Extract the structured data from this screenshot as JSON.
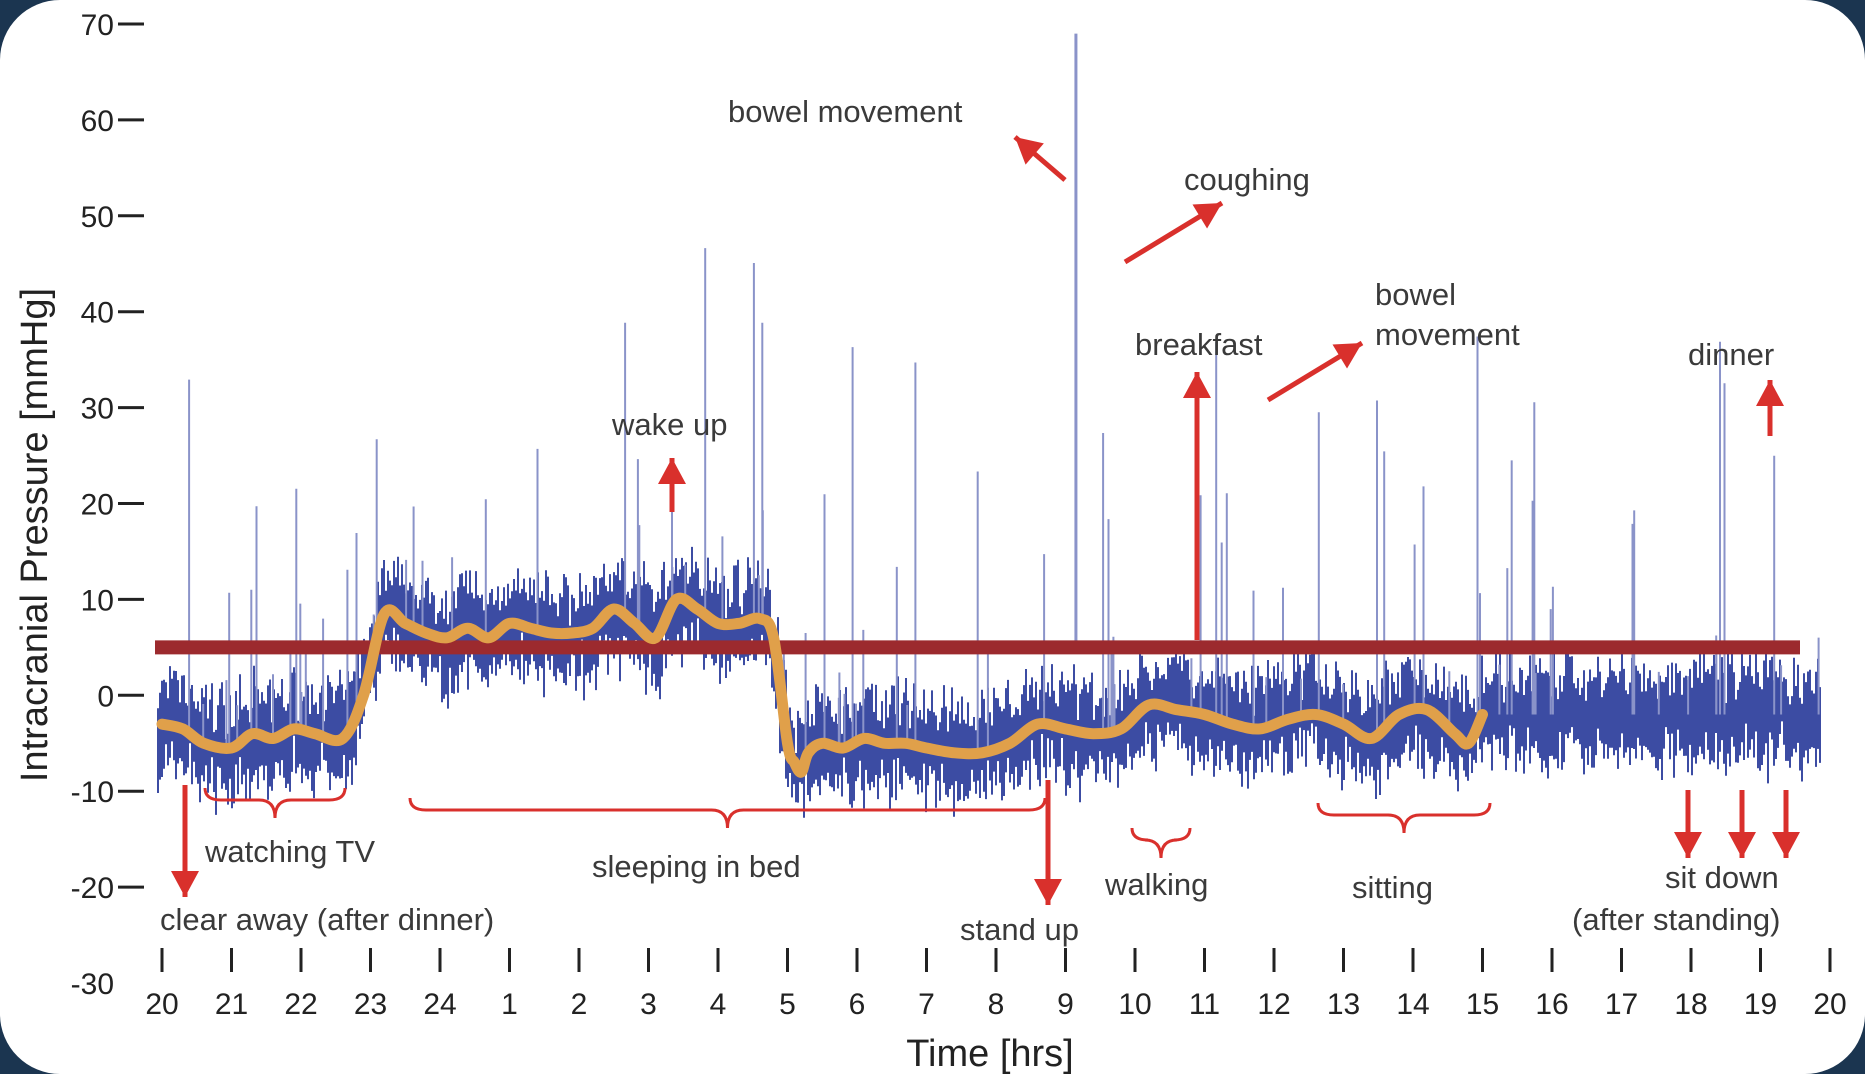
{
  "chart_data": {
    "type": "line",
    "xlabel": "Time [hrs]",
    "ylabel": "Intracranial Pressure [mmHg]",
    "ylim": [
      -30,
      70
    ],
    "yticks": [
      70,
      60,
      50,
      40,
      30,
      20,
      10,
      0,
      -10,
      -20,
      -30
    ],
    "xticks": [
      "20",
      "21",
      "22",
      "23",
      "24",
      "1",
      "2",
      "3",
      "4",
      "5",
      "6",
      "7",
      "8",
      "9",
      "10",
      "11",
      "12",
      "13",
      "14",
      "15",
      "16",
      "17",
      "18",
      "19",
      "20"
    ],
    "grid": false,
    "reference_line": {
      "y": 5,
      "color": "#9c2a2e"
    },
    "series": [
      {
        "color": "#e0a04a",
        "x": [
          0,
          0.3,
          0.6,
          1,
          1.3,
          1.6,
          1.9,
          2.2,
          2.6,
          2.9,
          3.2,
          3.5,
          3.8,
          4.1,
          4.4,
          4.7,
          5.0,
          5.3,
          5.6,
          5.9,
          6.2,
          6.5,
          6.8,
          7.1,
          7.4,
          7.7,
          8.0,
          8.3,
          8.6,
          8.8,
          9.0,
          9.1,
          9.2,
          9.3,
          9.5,
          9.8,
          10.1,
          10.4,
          10.7,
          11.0,
          11.4,
          11.8,
          12.2,
          12.6,
          13.0,
          13.4,
          13.8,
          14.2,
          14.6,
          15.0,
          15.4,
          15.8,
          16.2,
          16.6,
          17.0,
          17.4,
          17.8,
          18.2,
          18.6,
          18.8,
          19.0
        ],
        "y": [
          -3,
          -3.5,
          -5,
          -5.5,
          -4,
          -4.5,
          -3.5,
          -4,
          -4.5,
          0,
          8.5,
          7.5,
          6.5,
          6,
          7,
          6,
          7.5,
          7,
          6.5,
          6.5,
          7,
          9,
          7.5,
          6,
          10,
          9,
          7.5,
          7.5,
          8,
          6,
          -5,
          -7,
          -8,
          -6,
          -5,
          -5.5,
          -4.5,
          -5,
          -5,
          -5.5,
          -6,
          -6,
          -5,
          -3,
          -3.5,
          -4,
          -3.5,
          -1,
          -1.5,
          -2,
          -3,
          -3.5,
          -2.5,
          -2,
          -3,
          -4.5,
          -2,
          -1.5,
          -4,
          -5,
          -2
        ]
      }
    ],
    "annotations": [
      {
        "text": "bowel movement"
      },
      {
        "text": "coughing"
      },
      {
        "text": "bowel"
      },
      {
        "text": "movement"
      },
      {
        "text": "breakfast"
      },
      {
        "text": "dinner"
      },
      {
        "text": "wake up"
      },
      {
        "text": "watching TV"
      },
      {
        "text": "clear away (after dinner)"
      },
      {
        "text": "sleeping in bed"
      },
      {
        "text": "stand up"
      },
      {
        "text": "walking"
      },
      {
        "text": "sitting"
      },
      {
        "text": "sit down"
      },
      {
        "text": "(after standing)"
      }
    ]
  }
}
